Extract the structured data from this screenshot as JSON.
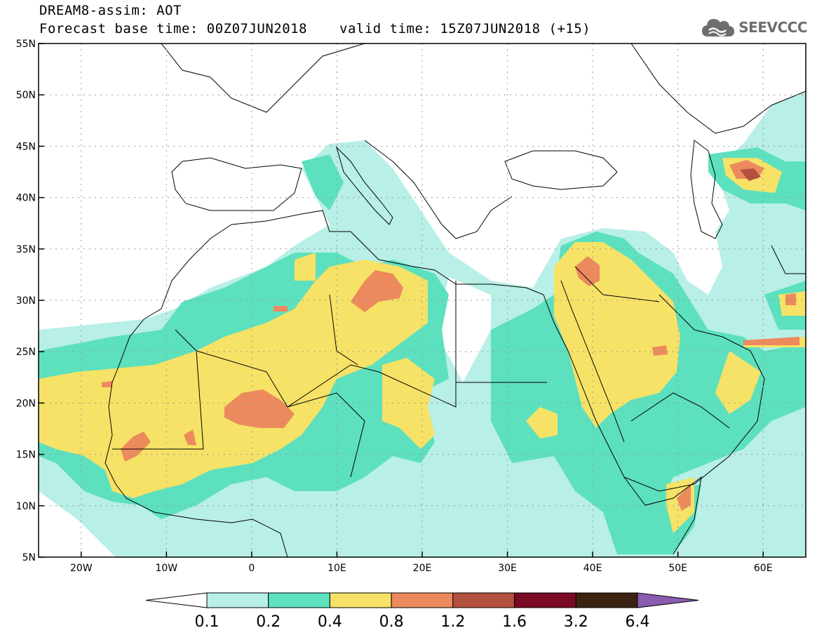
{
  "header": {
    "model_line": "DREAM8-assim: AOT",
    "base_time": "Forecast base time: 00Z07JUN2018",
    "valid_time": "valid time: 15Z07JUN2018 (+15)",
    "logo_text": "SEEVCCC"
  },
  "map": {
    "lat_ticks": [
      "55N",
      "50N",
      "45N",
      "40N",
      "35N",
      "30N",
      "25N",
      "20N",
      "15N",
      "10N",
      "5N"
    ],
    "lat_values": [
      55,
      50,
      45,
      40,
      35,
      30,
      25,
      20,
      15,
      10,
      5
    ],
    "lon_ticks": [
      "20W",
      "10W",
      "0",
      "10E",
      "20E",
      "30E",
      "40E",
      "50E",
      "60E"
    ],
    "lon_values": [
      -20,
      -10,
      0,
      10,
      20,
      30,
      40,
      50,
      60
    ],
    "lon_range": [
      -25,
      65
    ],
    "lat_range": [
      5,
      55
    ]
  },
  "colorbar": {
    "labels": [
      "0.1",
      "0.2",
      "0.4",
      "0.8",
      "1.2",
      "1.6",
      "3.2",
      "6.4"
    ],
    "colors": [
      "#ffffff",
      "#b8efe6",
      "#5de0be",
      "#f6e266",
      "#ec8a5e",
      "#b4503f",
      "#7a0a24",
      "#3b2312",
      "#8c5cb0"
    ]
  },
  "colors": {
    "c1": "#b8efe6",
    "c2": "#5de0be",
    "c3": "#f6e266",
    "c4": "#ec8a5e",
    "c5": "#b4503f",
    "logo": "#6e6e6e"
  }
}
